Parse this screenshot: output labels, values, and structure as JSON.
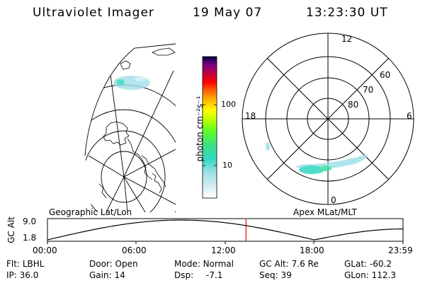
{
  "header": {
    "title": "Ultraviolet Imager",
    "date": "19 May 07",
    "time": "13:23:30 UT"
  },
  "colorbar": {
    "unit_label": "photon cm⁻²s⁻¹",
    "ticks": [
      "100",
      "10"
    ]
  },
  "polar_plot": {
    "mlt_labels": [
      "12",
      "18",
      "6",
      "0"
    ],
    "lat_labels": [
      "60",
      "70",
      "80"
    ]
  },
  "left_panel_label": "Geographic Lat/Lon",
  "right_panel_label": "Apex MLat/MLT",
  "altitude_chart": {
    "y_axis_label": "GC Alt",
    "y_ticks": [
      "9.0",
      "1.8"
    ],
    "x_ticks": [
      "00:00",
      "06:00",
      "12:00",
      "18:00",
      "23:59"
    ],
    "current_time_marker": "13:23:30"
  },
  "status": {
    "row1": [
      {
        "key": "Flt:",
        "value": "LBHL"
      },
      {
        "key": "Door:",
        "value": "Open"
      },
      {
        "key": "Mode:",
        "value": "Normal"
      },
      {
        "key": "GC Alt:",
        "value": "7.6 Re"
      },
      {
        "key": "GLat:",
        "value": "-60.2"
      }
    ],
    "row2": [
      {
        "key": "IP:",
        "value": "36.0"
      },
      {
        "key": "Gain:",
        "value": "14"
      },
      {
        "key": "Dsp:",
        "value": "-7.1"
      },
      {
        "key": "Seq:",
        "value": "39"
      },
      {
        "key": "GLon:",
        "value": "112.3"
      }
    ]
  },
  "colors": {
    "marker": "#e00000",
    "aurora": "#40d0c8"
  }
}
